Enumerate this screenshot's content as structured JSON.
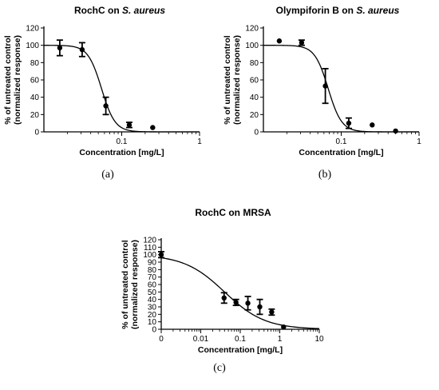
{
  "chart_data": [
    {
      "type": "scatter",
      "title_prefix": "RochC on ",
      "title_italic": "S. aureus",
      "xlabel": "Concentration [mg/L]",
      "ylabel_line1": "% of untreated control",
      "ylabel_line2": "(normalized response)",
      "caption": "(a)",
      "xscale": "log",
      "xlim": [
        0.01,
        1
      ],
      "ylim": [
        0,
        120
      ],
      "xticks": [
        {
          "v": 0.1,
          "label": "0.1"
        },
        {
          "v": 1,
          "label": "1"
        }
      ],
      "yticks": [
        0,
        20,
        40,
        60,
        80,
        100,
        120
      ],
      "points": [
        {
          "x": 0.016,
          "y": 97,
          "err": 9
        },
        {
          "x": 0.031,
          "y": 95,
          "err": 8
        },
        {
          "x": 0.0625,
          "y": 30,
          "err": 10
        },
        {
          "x": 0.125,
          "y": 8,
          "err": 3
        },
        {
          "x": 0.25,
          "y": 5,
          "err": 0
        }
      ],
      "fit": {
        "top": 100,
        "bottom": 0,
        "ec50": 0.055,
        "hill": 5
      }
    },
    {
      "type": "scatter",
      "title_prefix": "Olympiforin B on ",
      "title_italic": "S. aureus",
      "xlabel": "Concentration [mg/L]",
      "ylabel_line1": "% of untreated control",
      "ylabel_line2": "(normalized response)",
      "caption": "(b)",
      "xscale": "log",
      "xlim": [
        0.01,
        1
      ],
      "ylim": [
        0,
        120
      ],
      "xticks": [
        {
          "v": 0.1,
          "label": "0.1"
        },
        {
          "v": 1,
          "label": "1"
        }
      ],
      "yticks": [
        0,
        20,
        40,
        60,
        80,
        100,
        120
      ],
      "points": [
        {
          "x": 0.016,
          "y": 105,
          "err": 0
        },
        {
          "x": 0.031,
          "y": 103,
          "err": 3
        },
        {
          "x": 0.0625,
          "y": 53,
          "err": 20
        },
        {
          "x": 0.125,
          "y": 10,
          "err": 6
        },
        {
          "x": 0.25,
          "y": 8,
          "err": 0
        },
        {
          "x": 0.5,
          "y": 1,
          "err": 0
        }
      ],
      "fit": {
        "top": 100,
        "bottom": 0,
        "ec50": 0.068,
        "hill": 5
      }
    },
    {
      "type": "scatter",
      "title_prefix": "RochC on MRSA",
      "title_italic": "",
      "xlabel": "Concentration [mg/L]",
      "ylabel_line1": "% of untreated control",
      "ylabel_line2": "(normalized response)",
      "caption": "(c)",
      "xscale": "log",
      "xlim": [
        0.001,
        10
      ],
      "ylim": [
        0,
        120
      ],
      "xticks": [
        {
          "v": 0.001,
          "label": "0"
        },
        {
          "v": 0.01,
          "label": "0.01"
        },
        {
          "v": 0.1,
          "label": "0.1"
        },
        {
          "v": 1,
          "label": "1"
        },
        {
          "v": 10,
          "label": "10"
        }
      ],
      "yticks": [
        0,
        10,
        20,
        30,
        40,
        50,
        60,
        70,
        80,
        90,
        100,
        110,
        120
      ],
      "points": [
        {
          "x": 0.001,
          "y": 100,
          "err": 4
        },
        {
          "x": 0.039,
          "y": 42,
          "err": 7
        },
        {
          "x": 0.078,
          "y": 36,
          "err": 4
        },
        {
          "x": 0.156,
          "y": 35,
          "err": 9
        },
        {
          "x": 0.3125,
          "y": 30,
          "err": 10
        },
        {
          "x": 0.625,
          "y": 23,
          "err": 4
        },
        {
          "x": 1.25,
          "y": 3,
          "err": 0
        }
      ],
      "fit": {
        "top": 100,
        "bottom": 0,
        "ec50": 0.04,
        "hill": 0.85
      }
    }
  ]
}
